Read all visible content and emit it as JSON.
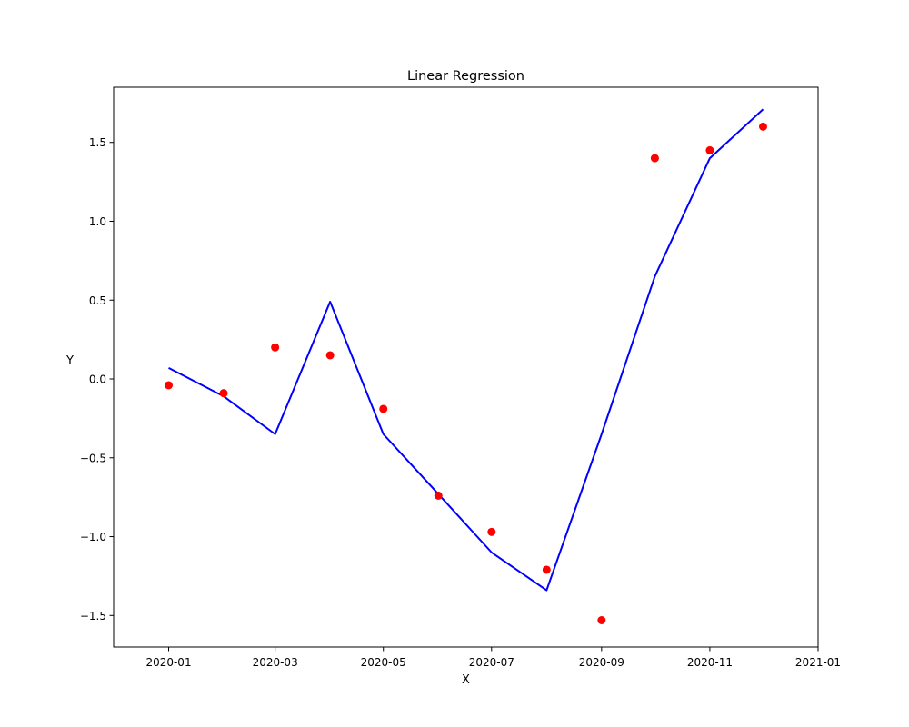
{
  "chart_data": {
    "type": "scatter",
    "title": "Linear Regression",
    "xlabel": "X",
    "ylabel": "Y",
    "x": [
      "2020-01-01",
      "2020-02-01",
      "2020-03-01",
      "2020-04-01",
      "2020-05-01",
      "2020-06-01",
      "2020-07-01",
      "2020-08-01",
      "2020-09-01",
      "2020-10-01",
      "2020-11-01",
      "2020-12-01"
    ],
    "xlim": [
      "2019-12-01",
      "2021-01-01"
    ],
    "ylim": [
      -1.7,
      1.85
    ],
    "x_ticks": [
      "2020-01",
      "2020-03",
      "2020-05",
      "2020-07",
      "2020-09",
      "2020-11",
      "2021-01"
    ],
    "x_tick_dates": [
      "2020-01-01",
      "2020-03-01",
      "2020-05-01",
      "2020-07-01",
      "2020-09-01",
      "2020-11-01",
      "2021-01-01"
    ],
    "y_ticks": [
      -1.5,
      -1.0,
      -0.5,
      0.0,
      0.5,
      1.0,
      1.5
    ],
    "y_tick_labels": [
      "−1.5",
      "−1.0",
      "−0.5",
      "0.0",
      "0.5",
      "1.0",
      "1.5"
    ],
    "grid": false,
    "series": [
      {
        "kind": "scatter",
        "color": "#ff0000",
        "values": [
          -0.04,
          -0.09,
          0.2,
          0.15,
          -0.19,
          -0.74,
          -0.97,
          -1.21,
          -1.53,
          1.4,
          1.45,
          1.6
        ]
      },
      {
        "kind": "line",
        "color": "#0000ff",
        "values": [
          0.07,
          -0.11,
          -0.35,
          0.49,
          -0.35,
          -0.73,
          -1.1,
          -1.34,
          -0.35,
          0.65,
          1.4,
          1.71
        ]
      }
    ]
  }
}
